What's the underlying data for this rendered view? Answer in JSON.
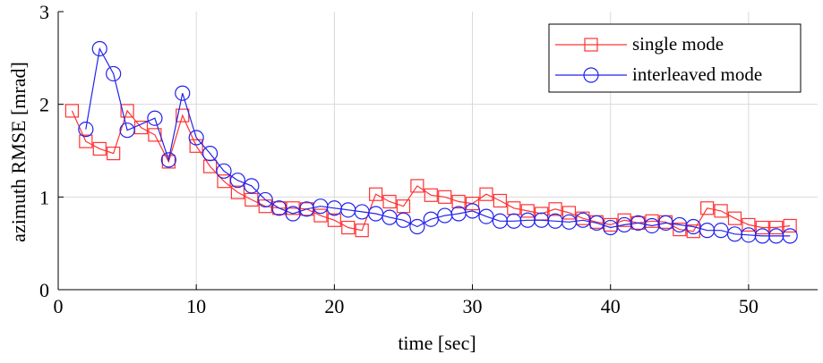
{
  "chart_data": {
    "type": "line",
    "title": "",
    "xlabel": "time [sec]",
    "ylabel": "azimuth RMSE [mrad]",
    "xlim": [
      0,
      55
    ],
    "ylim": [
      0,
      3
    ],
    "xticks": [
      0,
      10,
      20,
      30,
      40,
      50
    ],
    "yticks": [
      0,
      1,
      2,
      3
    ],
    "xtick_labels": [
      "0",
      "10",
      "20",
      "30",
      "40",
      "50"
    ],
    "ytick_labels": [
      "0",
      "1",
      "2",
      "3"
    ],
    "grid": true,
    "legend_position": "top-right",
    "series": [
      {
        "name": "single mode",
        "color": "#ff3333",
        "marker": "square",
        "x": [
          1,
          2,
          3,
          4,
          5,
          6,
          7,
          8,
          9,
          10,
          11,
          12,
          13,
          14,
          15,
          16,
          17,
          18,
          19,
          20,
          21,
          22,
          23,
          24,
          25,
          26,
          27,
          28,
          29,
          30,
          31,
          32,
          33,
          34,
          35,
          36,
          37,
          38,
          39,
          40,
          41,
          42,
          43,
          44,
          45,
          46,
          47,
          48,
          49,
          50,
          51,
          52,
          53
        ],
        "values": [
          1.93,
          1.6,
          1.52,
          1.47,
          1.93,
          1.75,
          1.67,
          1.38,
          1.88,
          1.55,
          1.33,
          1.17,
          1.05,
          0.97,
          0.9,
          0.88,
          0.88,
          0.87,
          0.8,
          0.75,
          0.67,
          0.64,
          1.03,
          0.95,
          0.9,
          1.12,
          1.02,
          1.0,
          0.95,
          0.93,
          1.03,
          0.96,
          0.88,
          0.85,
          0.82,
          0.87,
          0.83,
          0.77,
          0.73,
          0.7,
          0.75,
          0.72,
          0.74,
          0.73,
          0.65,
          0.63,
          0.88,
          0.85,
          0.77,
          0.7,
          0.67,
          0.67,
          0.69
        ]
      },
      {
        "name": "interleaved mode",
        "color": "#2222ee",
        "marker": "circle",
        "x": [
          2,
          3,
          4,
          5,
          7,
          8,
          9,
          10,
          11,
          12,
          13,
          14,
          15,
          16,
          17,
          18,
          19,
          20,
          21,
          22,
          23,
          24,
          25,
          26,
          27,
          28,
          29,
          30,
          31,
          32,
          33,
          34,
          35,
          36,
          37,
          38,
          39,
          40,
          41,
          42,
          43,
          44,
          45,
          46,
          47,
          48,
          49,
          50,
          51,
          52,
          53
        ],
        "values": [
          1.73,
          2.6,
          2.33,
          1.72,
          1.85,
          1.4,
          2.12,
          1.64,
          1.47,
          1.28,
          1.18,
          1.12,
          0.97,
          0.88,
          0.82,
          0.87,
          0.9,
          0.88,
          0.86,
          0.84,
          0.82,
          0.78,
          0.75,
          0.68,
          0.76,
          0.8,
          0.82,
          0.85,
          0.79,
          0.74,
          0.74,
          0.75,
          0.75,
          0.74,
          0.73,
          0.75,
          0.72,
          0.67,
          0.7,
          0.72,
          0.69,
          0.72,
          0.7,
          0.68,
          0.64,
          0.64,
          0.6,
          0.59,
          0.58,
          0.58,
          0.58
        ]
      }
    ]
  }
}
